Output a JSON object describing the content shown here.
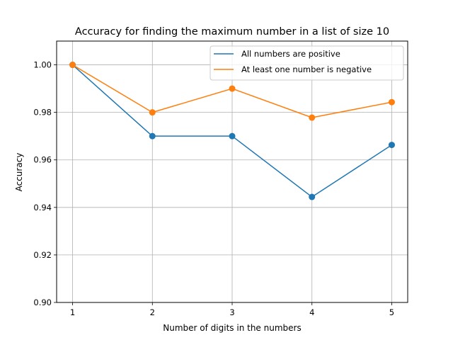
{
  "chart_data": {
    "type": "line",
    "title": "Accuracy for finding the maximum number in a list of size 10",
    "xlabel": "Number of digits in the numbers",
    "ylabel": "Accuracy",
    "x": [
      1,
      2,
      3,
      4,
      5
    ],
    "x_ticks": [
      "1",
      "2",
      "3",
      "4",
      "5"
    ],
    "xlim": [
      0.8,
      5.2
    ],
    "ylim": [
      0.9,
      1.01
    ],
    "y_ticks": [
      "0.90",
      "0.92",
      "0.94",
      "0.96",
      "0.98",
      "1.00"
    ],
    "grid": true,
    "legend_position": "top-right",
    "series": [
      {
        "name": "All numbers are positive",
        "color": "#1f77b4",
        "values": [
          1.0,
          0.97,
          0.97,
          0.9444,
          0.9663
        ]
      },
      {
        "name": "At least one number is negative",
        "color": "#ff7f0e",
        "values": [
          1.0,
          0.98,
          0.99,
          0.9778,
          0.9843
        ]
      }
    ]
  }
}
